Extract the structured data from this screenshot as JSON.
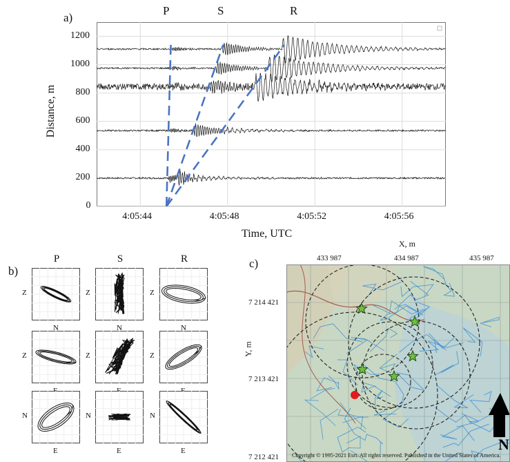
{
  "panel_a": {
    "label": "a)",
    "phase_labels": [
      "P",
      "S",
      "R"
    ],
    "xlabel": "Time, UTC",
    "ylabel": "Distance, m",
    "xticks": [
      "4:05:44",
      "4:05:48",
      "4:05:52",
      "4:05:56"
    ],
    "yticks": [
      "0",
      "200",
      "400",
      "600",
      "800",
      "1000",
      "1200"
    ]
  },
  "panel_b": {
    "label": "b)",
    "columns": [
      "P",
      "S",
      "R"
    ],
    "rows": [
      {
        "y_axis": "Z",
        "x_axis": "N"
      },
      {
        "y_axis": "Z",
        "x_axis": "E"
      },
      {
        "y_axis": "N",
        "x_axis": "E"
      }
    ]
  },
  "panel_c": {
    "label": "c)",
    "xlabel": "X, m",
    "ylabel": "Y, m",
    "xticks": [
      "433 987",
      "434 987",
      "435 987"
    ],
    "yticks": [
      "7 214 421",
      "7 213 421",
      "7 212 421"
    ],
    "north": "N",
    "copyright": "Copyright © 1995-2021 Esri. All rights reserved. Published in the United States of America."
  },
  "chart_data": {
    "type": "line",
    "xlabel": "Time, UTC",
    "ylabel": "Distance, m",
    "xlim": [
      "4:05:42",
      "4:05:58"
    ],
    "ylim": [
      0,
      1300
    ],
    "grid": true,
    "trace_offsets_m": [
      200,
      535,
      845,
      975,
      1110
    ],
    "arrivals": [
      {
        "name": "P",
        "start": [
          "4:05:45.2",
          0
        ],
        "end": [
          "4:05:45.4",
          1140
        ]
      },
      {
        "name": "S",
        "start": [
          "4:05:45.2",
          0
        ],
        "end": [
          "4:05:47.8",
          1140
        ]
      },
      {
        "name": "R",
        "start": [
          "4:05:45.2",
          0
        ],
        "end": [
          "4:05:50.6",
          1140
        ]
      }
    ],
    "colors": {
      "arrival_line": "#4a74c4",
      "trace": "#111111"
    }
  }
}
